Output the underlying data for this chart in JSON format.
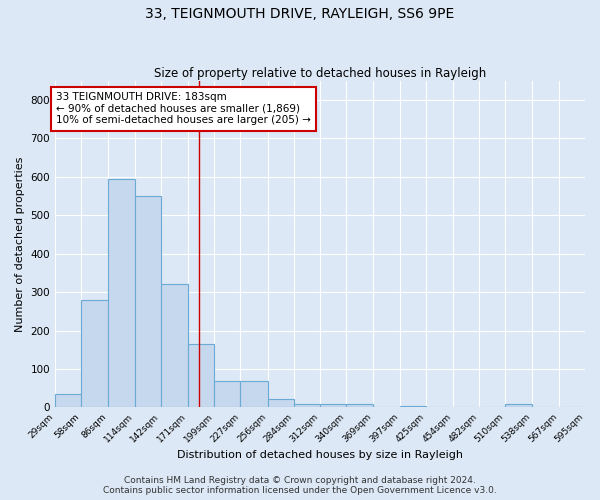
{
  "title": "33, TEIGNMOUTH DRIVE, RAYLEIGH, SS6 9PE",
  "subtitle": "Size of property relative to detached houses in Rayleigh",
  "xlabel": "Distribution of detached houses by size in Rayleigh",
  "ylabel": "Number of detached properties",
  "bin_edges": [
    29,
    57,
    86,
    114,
    142,
    171,
    199,
    227,
    256,
    284,
    312,
    340,
    369,
    397,
    425,
    454,
    482,
    510,
    538,
    567,
    595
  ],
  "bar_heights": [
    35,
    280,
    593,
    550,
    320,
    165,
    68,
    68,
    22,
    10,
    8,
    8,
    0,
    5,
    0,
    0,
    0,
    8,
    0,
    0
  ],
  "bar_color": "#c5d8ee",
  "bar_edgecolor": "#6aaad4",
  "bar_linewidth": 0.8,
  "red_line_x": 183,
  "annotation_text": "33 TEIGNMOUTH DRIVE: 183sqm\n← 90% of detached houses are smaller (1,869)\n10% of semi-detached houses are larger (205) →",
  "annotation_box_color": "#ffffff",
  "annotation_box_edgecolor": "#cc0000",
  "annotation_fontsize": 7.5,
  "ylim": [
    0,
    850
  ],
  "yticks": [
    0,
    100,
    200,
    300,
    400,
    500,
    600,
    700,
    800
  ],
  "tick_labels": [
    "29sqm",
    "58sqm",
    "86sqm",
    "114sqm",
    "142sqm",
    "171sqm",
    "199sqm",
    "227sqm",
    "256sqm",
    "284sqm",
    "312sqm",
    "340sqm",
    "369sqm",
    "397sqm",
    "425sqm",
    "454sqm",
    "482sqm",
    "510sqm",
    "538sqm",
    "567sqm",
    "595sqm"
  ],
  "bg_color": "#dce8f5",
  "grid_color": "#ffffff",
  "title_fontsize": 10,
  "subtitle_fontsize": 8.5,
  "xlabel_fontsize": 8,
  "ylabel_fontsize": 8,
  "footer_line1": "Contains HM Land Registry data © Crown copyright and database right 2024.",
  "footer_line2": "Contains public sector information licensed under the Open Government Licence v3.0.",
  "footer_fontsize": 6.5
}
